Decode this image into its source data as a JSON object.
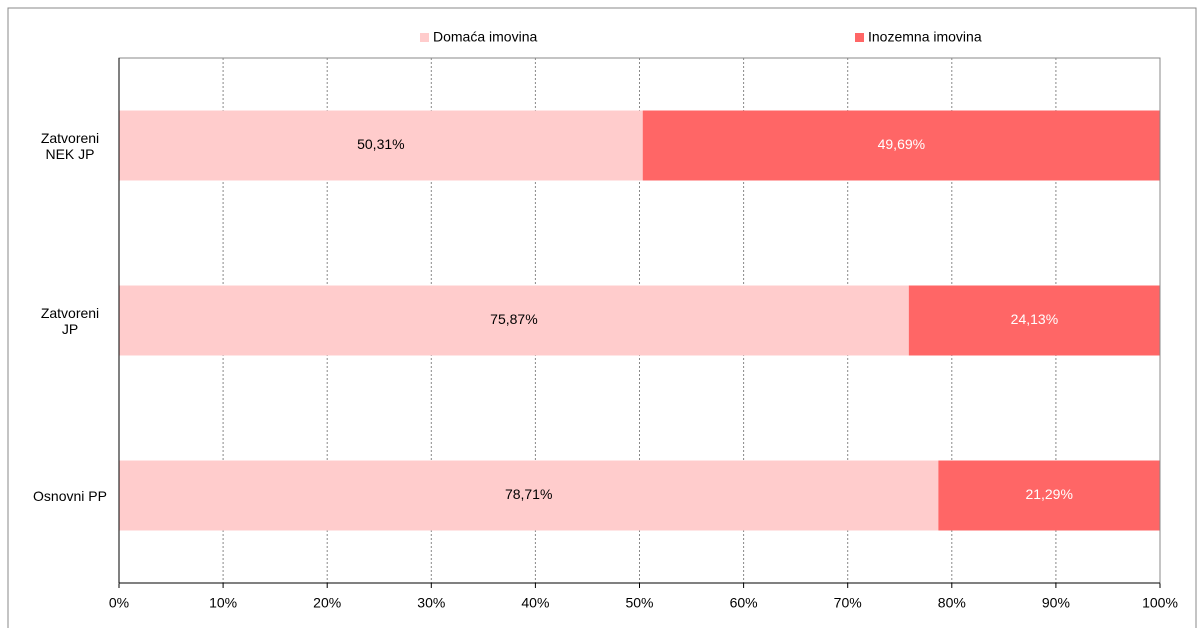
{
  "chart_data": {
    "type": "stacked_barh",
    "categories": [
      "Zatvoreni NEK JP",
      "Zatvoreni JP",
      "Osnovni PP"
    ],
    "series": [
      {
        "name": "Domaća imovina",
        "color": "#ffcccc",
        "label_color": "#000000",
        "values": [
          50.31,
          75.87,
          78.71
        ],
        "value_labels": [
          "50,31%",
          "75,87%",
          "78,71%"
        ]
      },
      {
        "name": "Inozemna imovina",
        "color": "#ff6666",
        "label_color": "#ffffff",
        "values": [
          49.69,
          24.13,
          21.29
        ],
        "value_labels": [
          "49,69%",
          "24,13%",
          "21,29%"
        ]
      }
    ],
    "xlim": [
      0,
      100
    ],
    "xticks": [
      {
        "value": 0,
        "label": "0%"
      },
      {
        "value": 10,
        "label": "10%"
      },
      {
        "value": 20,
        "label": "20%"
      },
      {
        "value": 30,
        "label": "30%"
      },
      {
        "value": 40,
        "label": "40%"
      },
      {
        "value": 50,
        "label": "50%"
      },
      {
        "value": 60,
        "label": "60%"
      },
      {
        "value": 70,
        "label": "70%"
      },
      {
        "value": 80,
        "label": "80%"
      },
      {
        "value": 90,
        "label": "90%"
      },
      {
        "value": 100,
        "label": "100%"
      }
    ],
    "grid": true,
    "legend": "top"
  }
}
